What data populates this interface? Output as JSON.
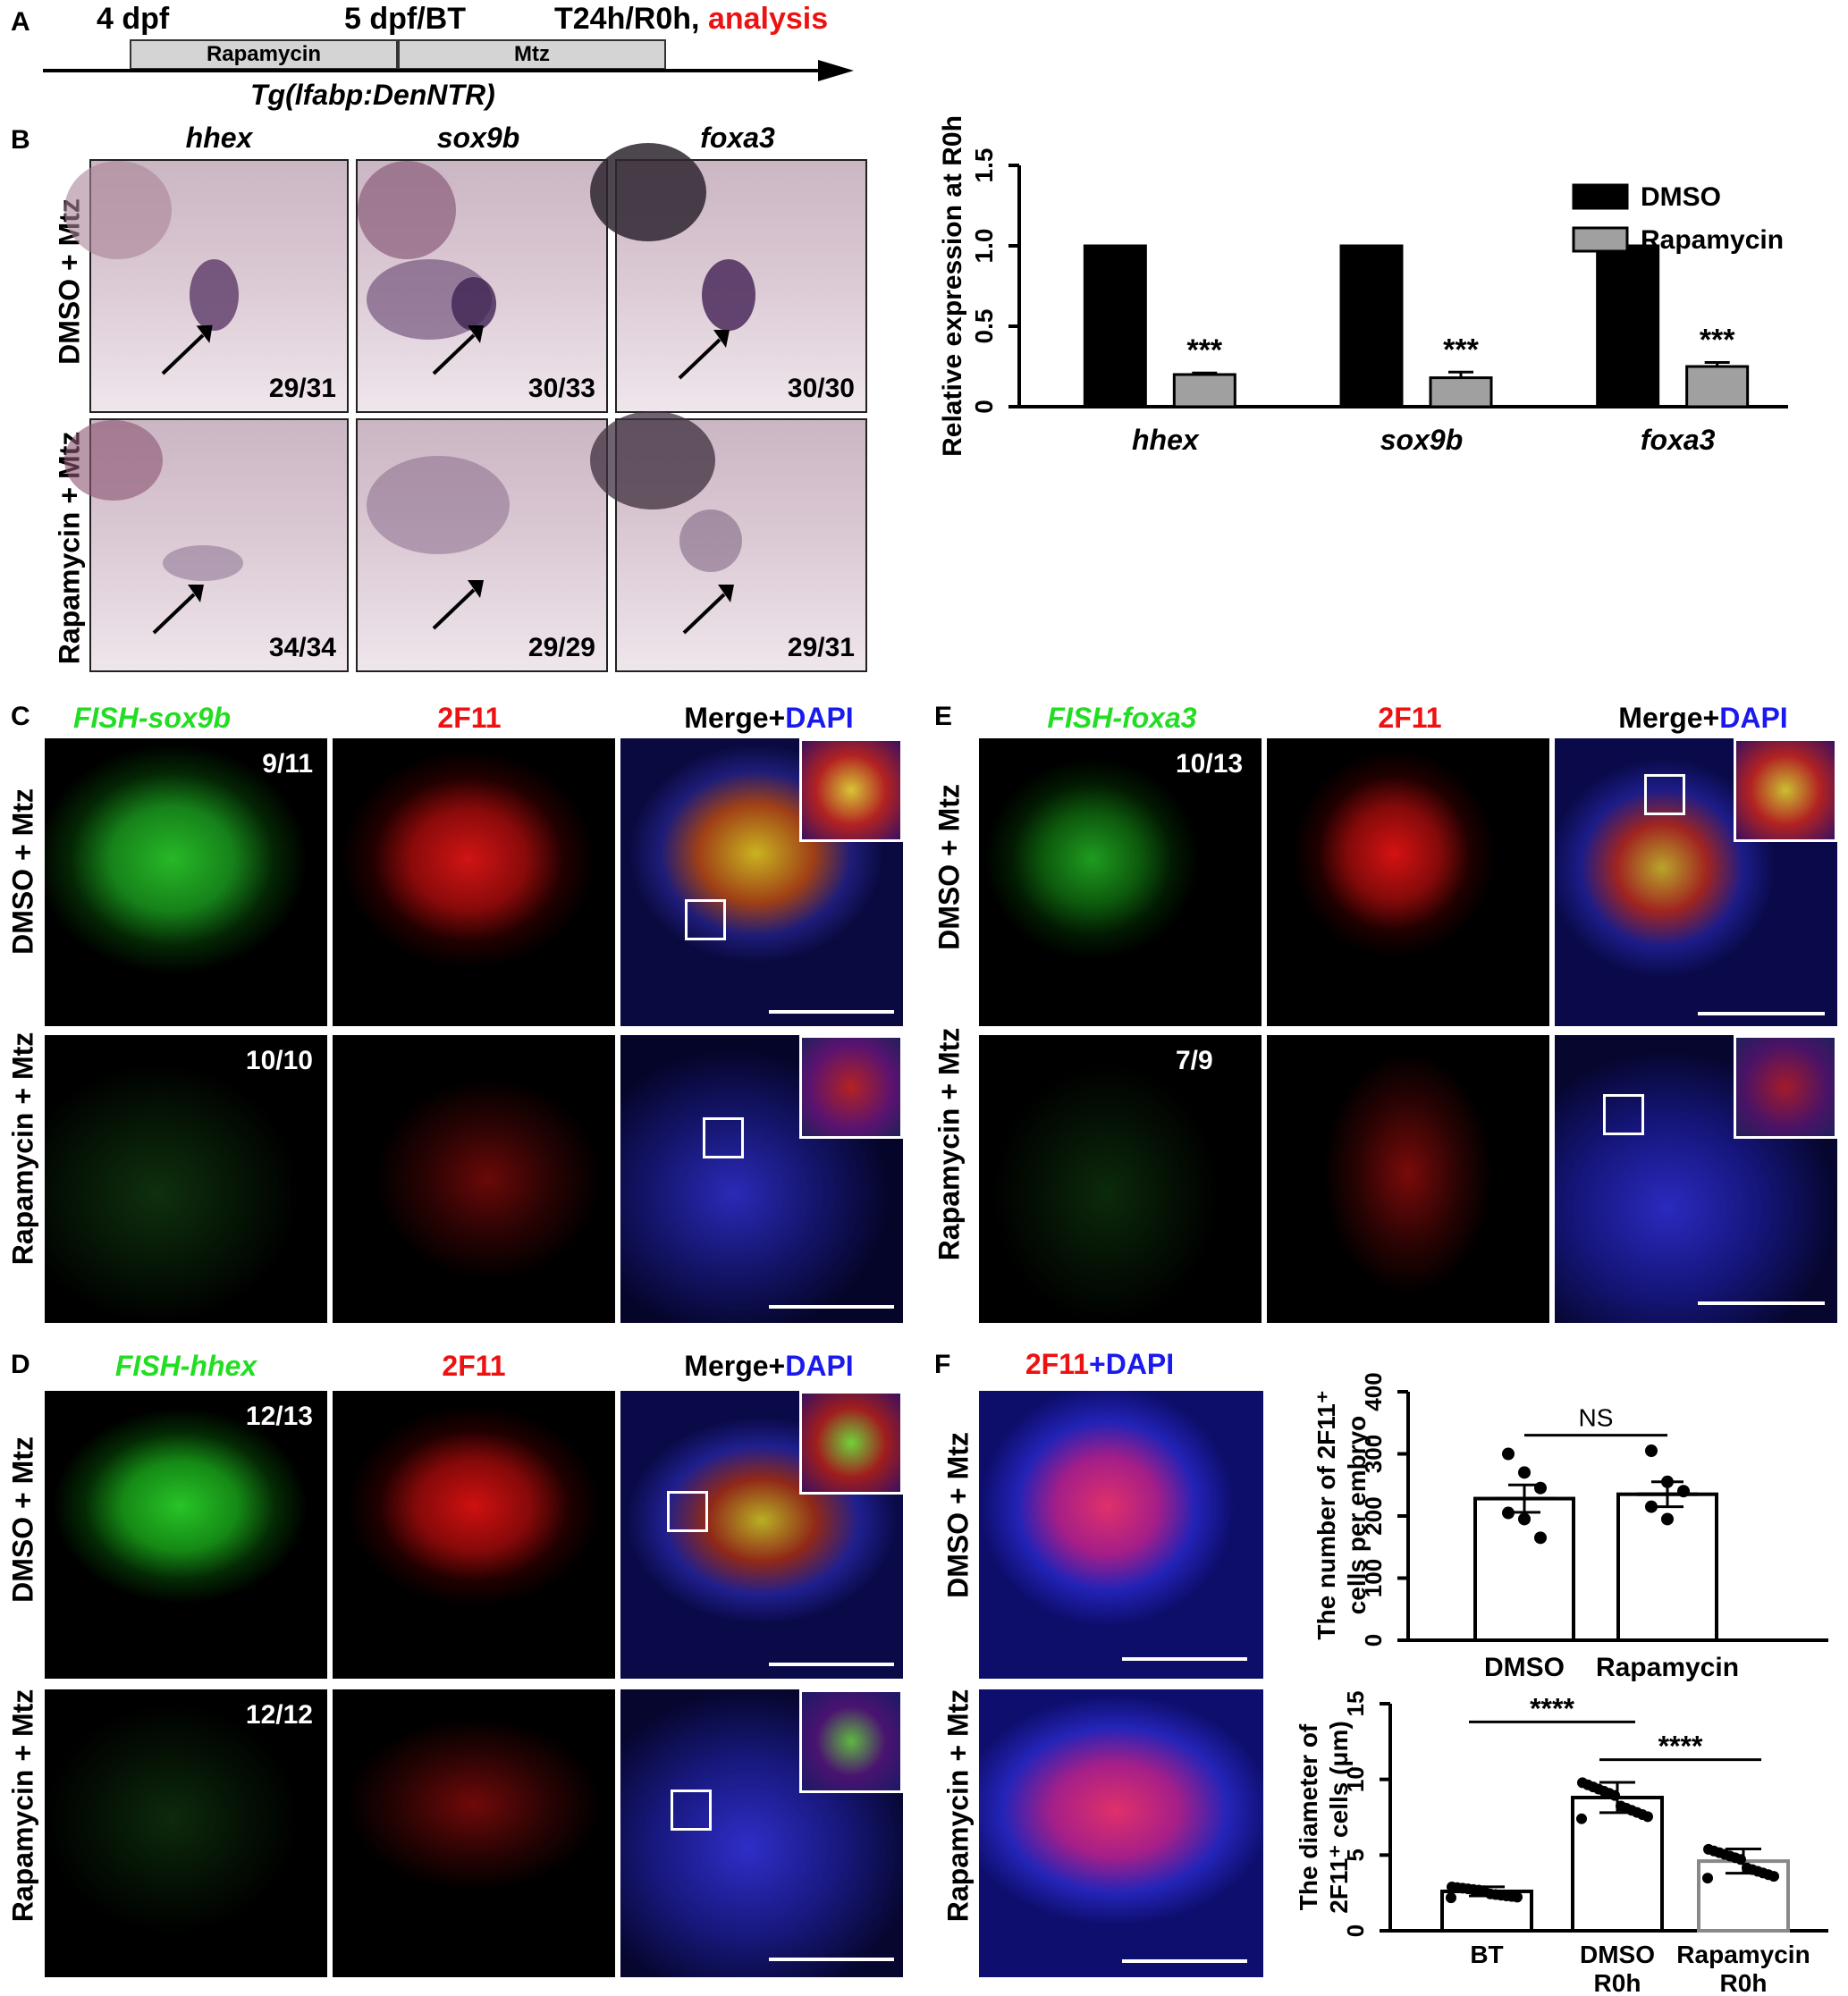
{
  "panelA": {
    "label": "A",
    "t1": "4 dpf",
    "t2": "5 dpf/BT",
    "t3": "T24h/R0h,",
    "t3b": "analysis",
    "box1": "Rapamycin",
    "box2": "Mtz",
    "line": "Tg(lfabp:DenNTR)"
  },
  "panelB": {
    "label": "B",
    "cols": [
      "hhex",
      "sox9b",
      "foxa3"
    ],
    "rows": [
      "DMSO + Mtz",
      "Rapamycin + Mtz"
    ],
    "counts_row1": [
      "29/31",
      "30/33",
      "30/30"
    ],
    "counts_row2": [
      "34/34",
      "29/29",
      "29/31"
    ]
  },
  "panelC": {
    "label": "C",
    "col1": "FISH-sox9b",
    "col2": "2F11",
    "col3a": "Merge+",
    "col3b": "DAPI",
    "rows": [
      "DMSO + Mtz",
      "Rapamycin + Mtz"
    ],
    "counts": [
      "9/11",
      "10/10"
    ]
  },
  "panelD": {
    "label": "D",
    "col1": "FISH-hhex",
    "col2": "2F11",
    "col3a": "Merge+",
    "col3b": "DAPI",
    "rows": [
      "DMSO + Mtz",
      "Rapamycin + Mtz"
    ],
    "counts": [
      "12/13",
      "12/12"
    ]
  },
  "panelE": {
    "label": "E",
    "col1": "FISH-foxa3",
    "col2": "2F11",
    "col3a": "Merge+",
    "col3b": "DAPI",
    "rows": [
      "DMSO + Mtz",
      "Rapamycin + Mtz"
    ],
    "counts": [
      "10/13",
      "7/9"
    ]
  },
  "panelF": {
    "label": "F",
    "title_a": "2F11",
    "title_b": "+DAPI",
    "rows": [
      "DMSO + Mtz",
      "Rapamycin + Mtz"
    ]
  },
  "chart_data": [
    {
      "type": "bar",
      "ylabel": "Relative expression at R0h",
      "categories": [
        "hhex",
        "sox9b",
        "foxa3"
      ],
      "series": [
        {
          "name": "DMSO",
          "values": [
            1.0,
            1.0,
            1.0
          ],
          "color": "#000000"
        },
        {
          "name": "Rapamycin",
          "values": [
            0.2,
            0.18,
            0.25
          ],
          "errors": [
            0.01,
            0.035,
            0.025
          ],
          "color": "#a0a0a0"
        }
      ],
      "annotations": [
        "***",
        "***",
        "***"
      ],
      "ylim": [
        0,
        1.5
      ],
      "yticks": [
        "0",
        "0.5",
        "1.0",
        "1.5"
      ],
      "legend": "top-right"
    },
    {
      "type": "bar",
      "ylabel": "The number of 2F11⁺ cells per embryo",
      "categories": [
        "DMSO",
        "Rapamycin"
      ],
      "values": [
        228,
        235
      ],
      "sem": [
        22,
        20
      ],
      "points": [
        [
          300,
          270,
          245,
          205,
          195,
          165
        ],
        [
          305,
          255,
          240,
          215,
          195
        ]
      ],
      "significance": "NS",
      "ylim": [
        0,
        400
      ],
      "yticks": [
        "0",
        "100",
        "200",
        "300",
        "400"
      ]
    },
    {
      "type": "bar",
      "ylabel": "The diameter of 2F11⁺ cells (μm)",
      "categories": [
        "BT",
        "DMSO R0h",
        "Rapamycin R0h"
      ],
      "values": [
        2.6,
        8.8,
        4.6
      ],
      "sd": [
        0.3,
        1.0,
        0.8
      ],
      "significance": [
        "****",
        "****"
      ],
      "ylim": [
        0,
        15
      ],
      "yticks": [
        "0",
        "5",
        "10",
        "15"
      ]
    }
  ]
}
